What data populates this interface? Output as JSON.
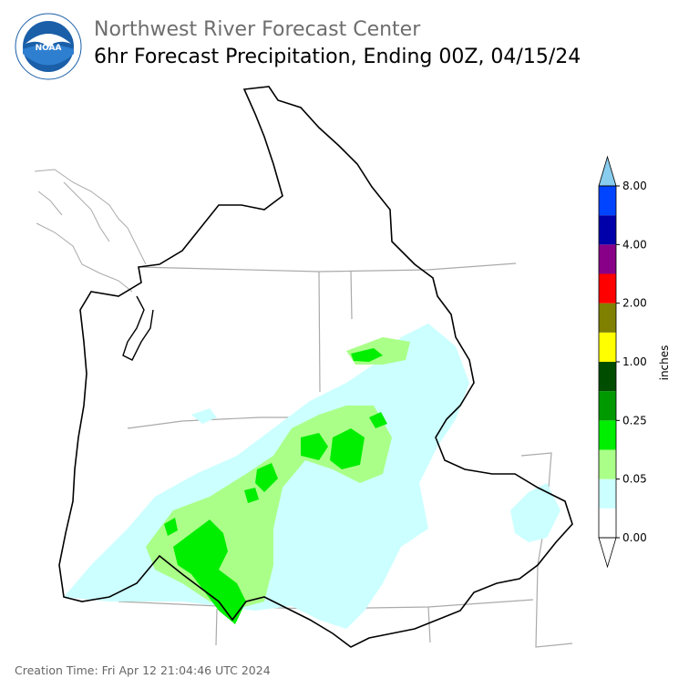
{
  "header": {
    "org": "Northwest River Forecast Center",
    "product": "6hr Forecast Precipitation, Ending 00Z, 04/15/24"
  },
  "logo": {
    "text": "NOAA",
    "ring_text": "NATIONAL OCEANIC AND ATMOSPHERIC ADMINISTRATION · U.S. DEPARTMENT OF COMMERCE"
  },
  "footer": {
    "creation_time": "Creation Time: Fri Apr 12 21:04:46 UTC 2024"
  },
  "colorbar": {
    "unit": "inches",
    "bins": [
      {
        "color": "#ffffff"
      },
      {
        "color": "#ccffff"
      },
      {
        "color": "#aaff88"
      },
      {
        "color": "#00ee00"
      },
      {
        "color": "#009900"
      },
      {
        "color": "#004d00"
      },
      {
        "color": "#ffff00"
      },
      {
        "color": "#808000"
      },
      {
        "color": "#ff0000"
      },
      {
        "color": "#880088"
      },
      {
        "color": "#0000aa"
      },
      {
        "color": "#0044ff"
      }
    ],
    "over_color": "#88ccee",
    "under_color": "#ffffff",
    "tick_labels": [
      "0.00",
      "0.05",
      "0.25",
      "1.00",
      "2.00",
      "4.00",
      "8.00"
    ]
  },
  "map": {
    "colors": {
      "basin_outline": "#000000",
      "state_lines": "#aaaaaa",
      "coast": "#aaaaaa"
    }
  }
}
